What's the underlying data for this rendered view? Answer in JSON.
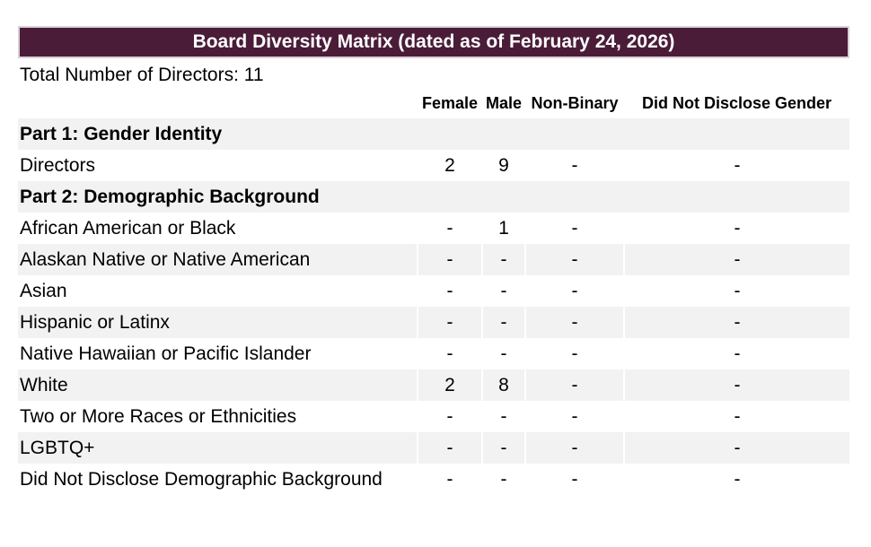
{
  "title_bar": {
    "text": "Board Diversity Matrix (dated as of February 24, 2026)"
  },
  "summary": {
    "total_directors_line": "Total Number of Directors: 11"
  },
  "table": {
    "columns": [
      "",
      "Female",
      "Male",
      "Non-Binary",
      "Did Not Disclose Gender"
    ],
    "rows": [
      {
        "type": "section",
        "label": "Part 1: Gender Identity"
      },
      {
        "type": "data",
        "label": "Directors",
        "values": [
          "2",
          "9",
          "-",
          "-"
        ]
      },
      {
        "type": "section",
        "label": "Part 2: Demographic Background"
      },
      {
        "type": "data",
        "label": "African American or Black",
        "values": [
          "-",
          "1",
          "-",
          "-"
        ]
      },
      {
        "type": "data",
        "label": "Alaskan Native or Native American",
        "values": [
          "-",
          "-",
          "-",
          "-"
        ]
      },
      {
        "type": "data",
        "label": "Asian",
        "values": [
          "-",
          "-",
          "-",
          "-"
        ]
      },
      {
        "type": "data",
        "label": "Hispanic or Latinx",
        "values": [
          "-",
          "-",
          "-",
          "-"
        ]
      },
      {
        "type": "data",
        "label": "Native Hawaiian or Pacific Islander",
        "values": [
          "-",
          "-",
          "-",
          "-"
        ]
      },
      {
        "type": "data",
        "label": "White",
        "values": [
          "2",
          "8",
          "-",
          "-"
        ]
      },
      {
        "type": "data",
        "label": "Two or More Races or Ethnicities",
        "values": [
          "-",
          "-",
          "-",
          "-"
        ]
      },
      {
        "type": "data",
        "label": "LGBTQ+",
        "values": [
          "-",
          "-",
          "-",
          "-"
        ]
      },
      {
        "type": "data",
        "label": "Did Not Disclose Demographic Background",
        "values": [
          "-",
          "-",
          "-",
          "-"
        ]
      }
    ]
  },
  "colors": {
    "title_bg": "#4A1C38",
    "title_border": "#D9CFD6",
    "title_fg": "#FFFFFF",
    "stripe": "#F2F2F2",
    "text": "#000000"
  }
}
